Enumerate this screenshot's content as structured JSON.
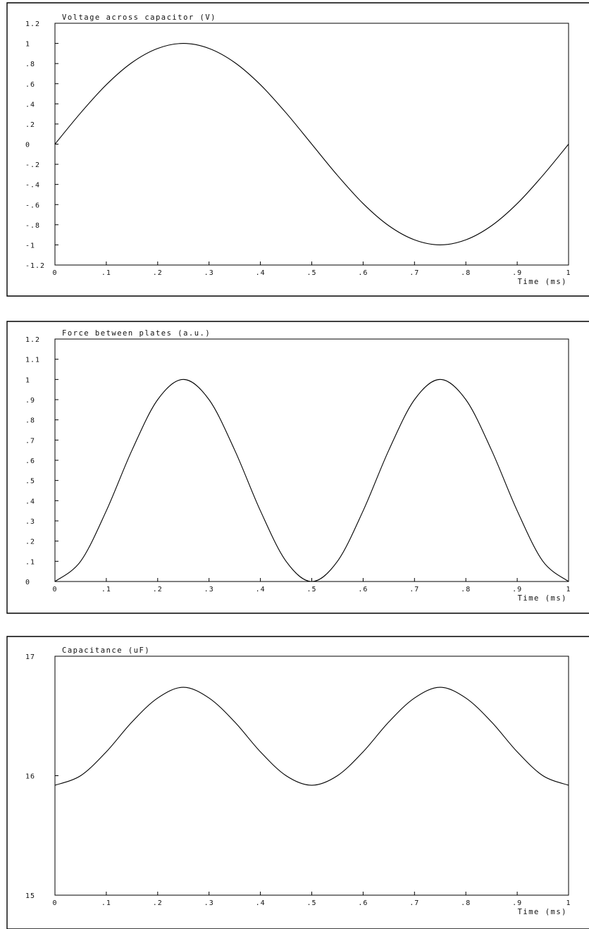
{
  "chart_data": [
    {
      "type": "line",
      "title": "Voltage across capacitor (V)",
      "xlabel": "Time (ms)",
      "ylabel": "",
      "xlim": [
        0,
        1
      ],
      "ylim": [
        -1.2,
        1.2
      ],
      "xticks": [
        "0",
        ".1",
        ".2",
        ".3",
        ".4",
        ".5",
        ".6",
        ".7",
        ".8",
        ".9",
        "1"
      ],
      "yticks": [
        "1.2",
        "1",
        ".8",
        ".6",
        ".4",
        ".2",
        "0",
        "-.2",
        "-.4",
        "-.6",
        "-.8",
        "-1",
        "-1.2"
      ],
      "grid": false,
      "series": [
        {
          "x": [
            0,
            0.05,
            0.1,
            0.15,
            0.2,
            0.25,
            0.3,
            0.35,
            0.4,
            0.45,
            0.5,
            0.55,
            0.6,
            0.65,
            0.7,
            0.75,
            0.8,
            0.85,
            0.9,
            0.95,
            1
          ],
          "y": [
            0,
            0.31,
            0.59,
            0.81,
            0.95,
            1,
            0.95,
            0.81,
            0.59,
            0.31,
            0,
            -0.31,
            -0.59,
            -0.81,
            -0.95,
            -1,
            -0.95,
            -0.81,
            -0.59,
            -0.31,
            0
          ]
        }
      ]
    },
    {
      "type": "line",
      "title": "Force between plates (a.u.)",
      "xlabel": "Time (ms)",
      "ylabel": "",
      "xlim": [
        0,
        1
      ],
      "ylim": [
        0,
        1.2
      ],
      "xticks": [
        "0",
        ".1",
        ".2",
        ".3",
        ".4",
        ".5",
        ".6",
        ".7",
        ".8",
        ".9",
        "1"
      ],
      "yticks": [
        "1.2",
        "1.1",
        "1",
        ".9",
        ".8",
        ".7",
        ".6",
        ".5",
        ".4",
        ".3",
        ".2",
        ".1",
        "0"
      ],
      "grid": false,
      "series": [
        {
          "x": [
            0,
            0.05,
            0.1,
            0.15,
            0.2,
            0.25,
            0.3,
            0.35,
            0.4,
            0.45,
            0.5,
            0.55,
            0.6,
            0.65,
            0.7,
            0.75,
            0.8,
            0.85,
            0.9,
            0.95,
            1
          ],
          "y": [
            0,
            0.1,
            0.35,
            0.65,
            0.9,
            1,
            0.9,
            0.65,
            0.35,
            0.1,
            0,
            0.1,
            0.35,
            0.65,
            0.9,
            1,
            0.9,
            0.65,
            0.35,
            0.1,
            0
          ]
        }
      ]
    },
    {
      "type": "line",
      "title": "Capacitance (uF)",
      "xlabel": "Time (ms)",
      "ylabel": "",
      "xlim": [
        0,
        1
      ],
      "ylim": [
        15,
        17
      ],
      "xticks": [
        "0",
        ".1",
        ".2",
        ".3",
        ".4",
        ".5",
        ".6",
        ".7",
        ".8",
        ".9",
        "1"
      ],
      "yticks": [
        "17",
        "16",
        "15"
      ],
      "grid": false,
      "series": [
        {
          "x": [
            0,
            0.05,
            0.1,
            0.15,
            0.2,
            0.25,
            0.3,
            0.35,
            0.4,
            0.45,
            0.5,
            0.55,
            0.6,
            0.65,
            0.7,
            0.75,
            0.8,
            0.85,
            0.9,
            0.95,
            1
          ],
          "y": [
            15.92,
            16.0,
            16.2,
            16.45,
            16.65,
            16.74,
            16.65,
            16.45,
            16.2,
            16.0,
            15.92,
            16.0,
            16.2,
            16.45,
            16.65,
            16.74,
            16.65,
            16.45,
            16.2,
            16.0,
            15.92
          ]
        }
      ]
    }
  ]
}
